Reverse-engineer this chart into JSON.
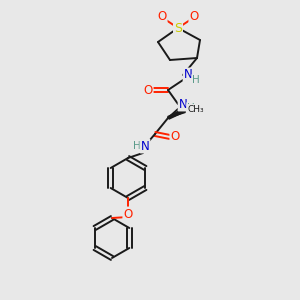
{
  "background_color": "#e8e8e8",
  "bond_color": "#1a1a1a",
  "atom_colors": {
    "O": "#ff2200",
    "N": "#0000cc",
    "S": "#cccc00",
    "C": "#1a1a1a",
    "H": "#5a9a8a"
  },
  "figsize": [
    3.0,
    3.0
  ],
  "dpi": 100
}
